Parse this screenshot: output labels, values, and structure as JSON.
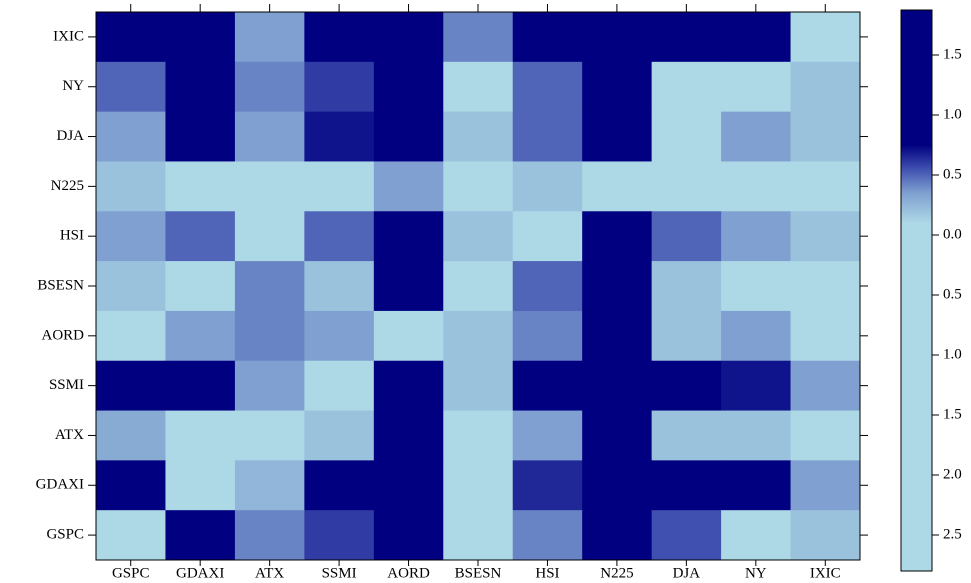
{
  "chart_data": {
    "type": "heatmap",
    "rows": [
      "IXIC",
      "NY",
      "DJA",
      "N225",
      "HSI",
      "BSESN",
      "AORD",
      "SSMI",
      "ATX",
      "GDAXI",
      "GSPC"
    ],
    "columns": [
      "GSPC",
      "GDAXI",
      "ATX",
      "SSMI",
      "AORD",
      "BSESN",
      "HSI",
      "N225",
      "DJA",
      "NY",
      "IXIC"
    ],
    "values": [
      [
        1.5,
        1.5,
        0.35,
        1.5,
        1.5,
        0.42,
        1.5,
        1.5,
        1.5,
        1.5,
        -1
      ],
      [
        0.5,
        1.5,
        0.42,
        0.6,
        1.5,
        -1,
        0.5,
        1.5,
        -1,
        -1,
        0.2
      ],
      [
        0.35,
        0.8,
        0.35,
        0.7,
        1.5,
        0.2,
        0.5,
        1.5,
        -1,
        0.35,
        0.2
      ],
      [
        0.2,
        -1,
        -1,
        -1,
        0.35,
        -1,
        0.2,
        -1,
        -1,
        -1,
        -1
      ],
      [
        0.35,
        0.5,
        -1,
        0.5,
        1.5,
        0.2,
        -1,
        1.5,
        0.5,
        0.35,
        0.2
      ],
      [
        0.2,
        -1,
        0.42,
        0.2,
        1.5,
        -1,
        0.5,
        1.5,
        0.2,
        -1,
        -1
      ],
      [
        -1,
        0.35,
        0.42,
        0.35,
        -1,
        0.2,
        0.42,
        1.5,
        0.2,
        0.35,
        -1
      ],
      [
        0.75,
        1.5,
        0.35,
        -1,
        1.5,
        0.2,
        1.5,
        1.5,
        1.5,
        0.7,
        0.35
      ],
      [
        0.3,
        -1,
        -1,
        0.2,
        1.5,
        -1,
        0.35,
        1.5,
        0.2,
        0.2,
        -1
      ],
      [
        1.5,
        -1,
        0.25,
        1.5,
        1.5,
        -1,
        0.65,
        1.5,
        1.5,
        0.75,
        0.35
      ],
      [
        -1,
        1.5,
        0.42,
        0.6,
        1.5,
        -1,
        0.42,
        1.5,
        0.55,
        -1,
        0.2
      ]
    ],
    "colorscale": [
      [
        -2.8,
        "#add8e6"
      ],
      [
        0.1,
        "#add8e6"
      ],
      [
        0.35,
        "#7fa0d0"
      ],
      [
        0.55,
        "#4050b0"
      ],
      [
        0.75,
        "#000080"
      ],
      [
        1.875,
        "#000080"
      ]
    ],
    "zlim": [
      -2.8,
      1.875
    ],
    "zticks": [
      1.5,
      {
        "value": 1.0,
        "label": "1.0"
      },
      0.5,
      {
        "value": 0.0,
        "label": "0.0"
      },
      {
        "value": -0.5,
        "label": "0.5"
      },
      {
        "value": -1.0,
        "label": "1.0"
      },
      {
        "value": -1.5,
        "label": "1.5"
      },
      {
        "value": -2.0,
        "label": "2.0"
      },
      {
        "value": -2.5,
        "label": "2.5"
      }
    ]
  }
}
